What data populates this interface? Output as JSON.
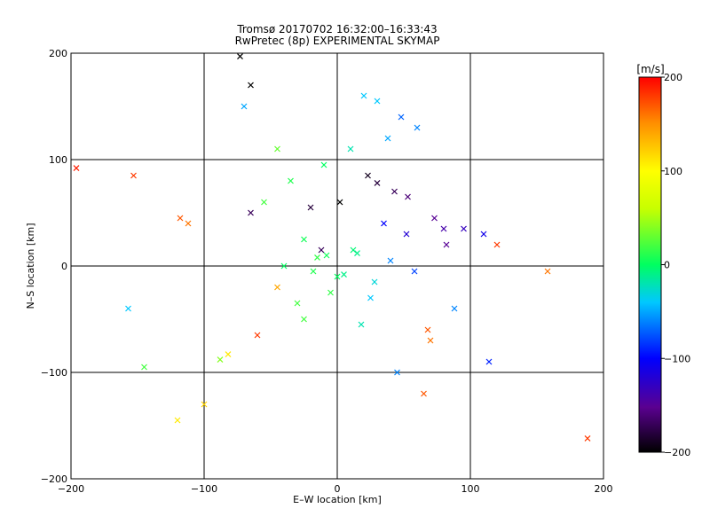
{
  "chart_data": {
    "type": "scatter",
    "title": "Tromsø 20170702 16:32:00–16:33:43",
    "subtitle": "RwPretec (8p) EXPERIMENTAL SKYMAP",
    "xlabel": "E–W location [km]",
    "ylabel": "N–S location [km]",
    "xlim": [
      -200,
      200
    ],
    "ylim": [
      -200,
      200
    ],
    "x_ticks": [
      -200,
      -100,
      0,
      100,
      200
    ],
    "y_ticks": [
      -200,
      -100,
      0,
      100,
      200
    ],
    "x_tick_labels": [
      "−200",
      "−100",
      "0",
      "100",
      "200"
    ],
    "y_tick_labels": [
      "−200",
      "−100",
      "0",
      "100",
      "200"
    ],
    "grid_lines": [
      -100,
      0,
      100
    ],
    "colorbar": {
      "unit_label": "[m/s]",
      "range": [
        -200,
        200
      ],
      "ticks": [
        -200,
        -100,
        0,
        100,
        200
      ],
      "tick_labels": [
        "−200",
        "−100",
        "0",
        "100",
        "200"
      ],
      "colors": [
        "#000000",
        "#5a0090",
        "#0000ff",
        "#00c8ff",
        "#00ff60",
        "#c8ff00",
        "#ffff00",
        "#ff8c00",
        "#ff0000"
      ]
    },
    "markers": {
      "x_cross": "detection with velocity (large cross)",
      "dot": "small dot"
    },
    "points_x": [
      -196,
      -153,
      -118,
      -112,
      -73,
      -65,
      -20,
      -12,
      2,
      23,
      30,
      43,
      53,
      73,
      80,
      110,
      114,
      120,
      158,
      188,
      -157,
      -145,
      -120,
      -100,
      -82,
      -60,
      -45,
      -30,
      -18,
      -8,
      5,
      18,
      35,
      52,
      68,
      82,
      95,
      -40,
      -25,
      -5,
      12,
      28,
      40,
      58,
      70,
      88,
      60,
      48,
      38,
      30,
      20,
      10,
      -10,
      -35,
      -55,
      -70,
      -88,
      0,
      15,
      -15,
      25,
      -25,
      45,
      -45,
      65,
      -65
    ],
    "points_y": [
      92,
      85,
      45,
      40,
      197,
      170,
      55,
      15,
      60,
      85,
      78,
      70,
      65,
      45,
      35,
      30,
      -90,
      20,
      -5,
      -162,
      -40,
      -95,
      -145,
      -130,
      -83,
      -65,
      -20,
      -35,
      -5,
      10,
      -8,
      -55,
      40,
      30,
      -60,
      20,
      35,
      0,
      25,
      -25,
      15,
      -15,
      5,
      -5,
      -70,
      -40,
      130,
      140,
      120,
      155,
      160,
      110,
      95,
      80,
      60,
      150,
      -88,
      -10,
      12,
      8,
      -30,
      -50,
      -100,
      110,
      -120,
      50
    ],
    "points_v": [
      190,
      180,
      170,
      160,
      -200,
      -200,
      -180,
      -170,
      -200,
      -190,
      -180,
      -170,
      -160,
      -150,
      -140,
      -110,
      -90,
      180,
      160,
      180,
      -40,
      20,
      110,
      120,
      110,
      180,
      140,
      20,
      10,
      5,
      -10,
      -20,
      -100,
      -120,
      170,
      -150,
      -130,
      0,
      5,
      15,
      -5,
      -30,
      -60,
      -80,
      160,
      -60,
      -60,
      -70,
      -50,
      -40,
      -40,
      -20,
      0,
      10,
      20,
      -50,
      40,
      0,
      -10,
      15,
      -40,
      20,
      -60,
      30,
      170,
      -170
    ],
    "points_m": [
      1,
      1,
      1,
      1,
      1,
      1,
      1,
      1,
      1,
      1,
      1,
      1,
      1,
      1,
      1,
      1,
      1,
      1,
      1,
      1,
      1,
      1,
      1,
      1,
      1,
      1,
      1,
      1,
      1,
      1,
      1,
      1,
      1,
      1,
      1,
      1,
      1,
      1,
      1,
      1,
      1,
      1,
      1,
      1,
      1,
      1,
      1,
      1,
      1,
      1,
      1,
      1,
      1,
      1,
      1,
      1,
      1,
      1,
      1,
      1,
      1,
      1,
      1,
      1,
      1,
      1
    ]
  }
}
